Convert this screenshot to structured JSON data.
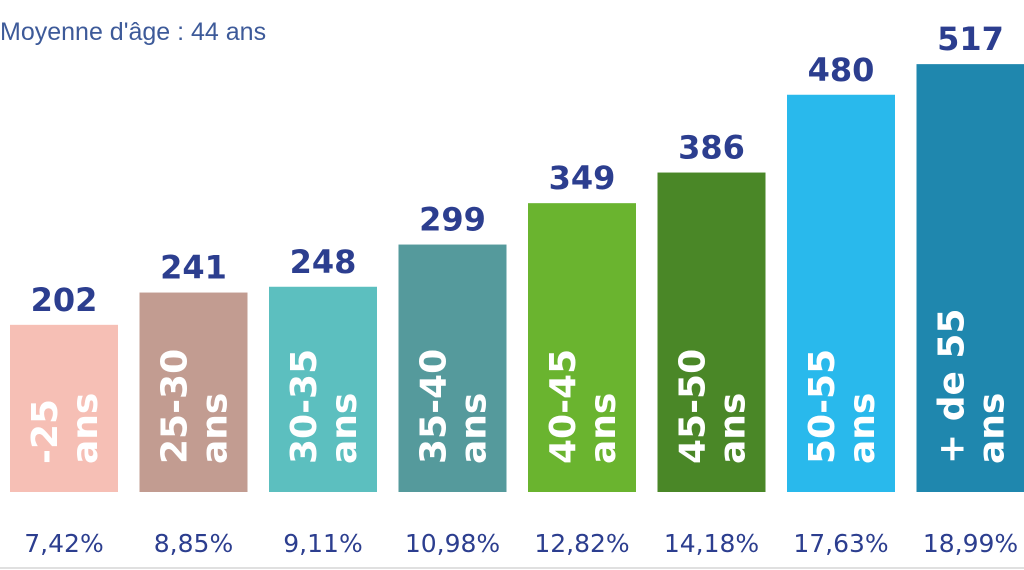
{
  "chart_data": {
    "type": "bar",
    "title": "",
    "subtitle": "Moyenne d'âge : 44 ans",
    "xlabel": "",
    "ylabel": "",
    "ylim": [
      0,
      540
    ],
    "grid": false,
    "legend": "none",
    "categories": [
      "-25 ans",
      "25-30 ans",
      "30-35 ans",
      "35-40 ans",
      "40-45 ans",
      "45-50 ans",
      "50-55 ans",
      "+ de 55 ans"
    ],
    "category_lines": [
      [
        "-25",
        "ans"
      ],
      [
        "25-30",
        "ans"
      ],
      [
        "30-35",
        "ans"
      ],
      [
        "35-40",
        "ans"
      ],
      [
        "40-45",
        "ans"
      ],
      [
        "45-50",
        "ans"
      ],
      [
        "50-55",
        "ans"
      ],
      [
        "+ de 55",
        "ans"
      ]
    ],
    "values": [
      202,
      241,
      248,
      299,
      349,
      386,
      480,
      517
    ],
    "value_labels": [
      "202",
      "241",
      "248",
      "299",
      "349",
      "386",
      "480",
      "517"
    ],
    "percent_labels": [
      "7,42%",
      "8,85%",
      "9,11%",
      "10,98%",
      "12,82%",
      "14,18%",
      "17,63%",
      "18,99%"
    ],
    "colors": [
      "#f6bfb5",
      "#c29c91",
      "#5cbfbf",
      "#559a9c",
      "#6ab42f",
      "#4a8727",
      "#29b9ec",
      "#1f87ae"
    ],
    "label_color": "#2c3e8f",
    "subtitle_color": "#3d5a99",
    "baseline_color": "#d6d6d6"
  }
}
